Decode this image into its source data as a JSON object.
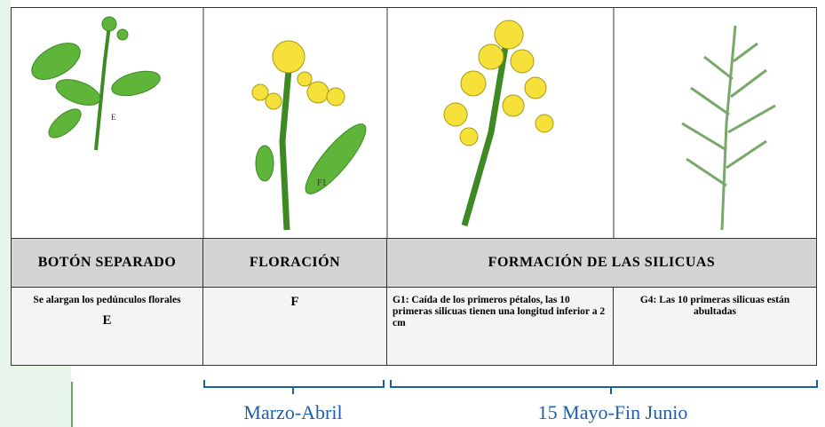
{
  "image_labels": [
    "E",
    "F1"
  ],
  "headers": [
    "BOTÓN SEPARADO",
    "FLORACIÓN",
    "FORMACIÓN DE LAS SILICUAS"
  ],
  "descriptions": [
    {
      "text": "Se alargan los pedúnculos florales",
      "code": "E"
    },
    {
      "code": "F"
    },
    {
      "text": "G1: Caída de los primeros pétalos, las 10 primeras silicuas tienen una longitud inferior a 2 cm"
    },
    {
      "text": "G4: Las 10 primeras silicuas están abultadas"
    }
  ],
  "periods": [
    "Marzo-Abril",
    "15 Mayo-Fin Junio"
  ]
}
